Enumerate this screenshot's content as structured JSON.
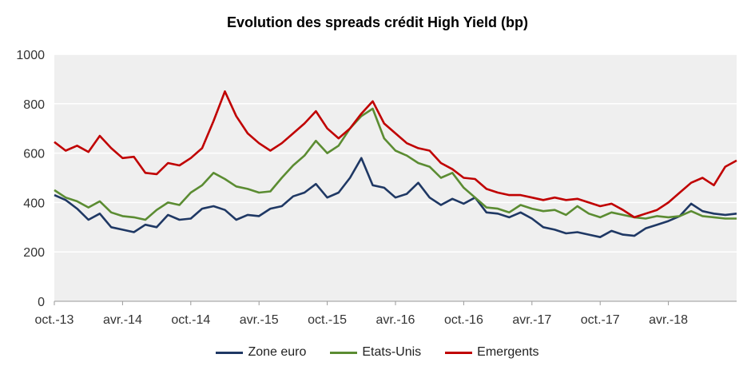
{
  "chart_data": {
    "type": "line",
    "title": "Evolution des spreads crédit High Yield (bp)",
    "xlabel": "",
    "ylabel": "",
    "ylim": [
      0,
      1000
    ],
    "yticks": [
      0,
      200,
      400,
      600,
      800,
      1000
    ],
    "xlim": [
      "2013-10",
      "2018-10"
    ],
    "xticks": [
      {
        "label": "oct.-13",
        "x": "2013-10"
      },
      {
        "label": "avr.-14",
        "x": "2014-04"
      },
      {
        "label": "oct.-14",
        "x": "2014-10"
      },
      {
        "label": "avr.-15",
        "x": "2015-04"
      },
      {
        "label": "oct.-15",
        "x": "2015-10"
      },
      {
        "label": "avr.-16",
        "x": "2016-04"
      },
      {
        "label": "oct.-16",
        "x": "2016-10"
      },
      {
        "label": "avr.-17",
        "x": "2017-04"
      },
      {
        "label": "oct.-17",
        "x": "2017-10"
      },
      {
        "label": "avr.-18",
        "x": "2018-04"
      }
    ],
    "grid": "horizontal",
    "legend_position": "bottom",
    "series": [
      {
        "name": "Zone euro",
        "color": "#1f3864",
        "points": [
          [
            "2013-10",
            430
          ],
          [
            "2013-11",
            410
          ],
          [
            "2013-12",
            375
          ],
          [
            "2014-01",
            330
          ],
          [
            "2014-02",
            355
          ],
          [
            "2014-03",
            300
          ],
          [
            "2014-04",
            290
          ],
          [
            "2014-05",
            280
          ],
          [
            "2014-06",
            310
          ],
          [
            "2014-07",
            300
          ],
          [
            "2014-08",
            350
          ],
          [
            "2014-09",
            330
          ],
          [
            "2014-10",
            335
          ],
          [
            "2014-11",
            375
          ],
          [
            "2014-12",
            385
          ],
          [
            "2015-01",
            370
          ],
          [
            "2015-02",
            330
          ],
          [
            "2015-03",
            350
          ],
          [
            "2015-04",
            345
          ],
          [
            "2015-05",
            375
          ],
          [
            "2015-06",
            385
          ],
          [
            "2015-07",
            425
          ],
          [
            "2015-08",
            440
          ],
          [
            "2015-09",
            475
          ],
          [
            "2015-10",
            420
          ],
          [
            "2015-11",
            440
          ],
          [
            "2015-12",
            500
          ],
          [
            "2016-01",
            580
          ],
          [
            "2016-02",
            470
          ],
          [
            "2016-03",
            460
          ],
          [
            "2016-04",
            420
          ],
          [
            "2016-05",
            435
          ],
          [
            "2016-06",
            480
          ],
          [
            "2016-07",
            420
          ],
          [
            "2016-08",
            390
          ],
          [
            "2016-09",
            415
          ],
          [
            "2016-10",
            395
          ],
          [
            "2016-11",
            420
          ],
          [
            "2016-12",
            360
          ],
          [
            "2017-01",
            355
          ],
          [
            "2017-02",
            340
          ],
          [
            "2017-03",
            360
          ],
          [
            "2017-04",
            335
          ],
          [
            "2017-05",
            300
          ],
          [
            "2017-06",
            290
          ],
          [
            "2017-07",
            275
          ],
          [
            "2017-08",
            280
          ],
          [
            "2017-09",
            270
          ],
          [
            "2017-10",
            260
          ],
          [
            "2017-11",
            285
          ],
          [
            "2017-12",
            270
          ],
          [
            "2018-01",
            265
          ],
          [
            "2018-02",
            295
          ],
          [
            "2018-03",
            310
          ],
          [
            "2018-04",
            325
          ],
          [
            "2018-05",
            345
          ],
          [
            "2018-06",
            395
          ],
          [
            "2018-07",
            365
          ],
          [
            "2018-08",
            355
          ],
          [
            "2018-09",
            350
          ],
          [
            "2018-10",
            355
          ]
        ]
      },
      {
        "name": "Etats-Unis",
        "color": "#5b8c32",
        "points": [
          [
            "2013-10",
            450
          ],
          [
            "2013-11",
            420
          ],
          [
            "2013-12",
            405
          ],
          [
            "2014-01",
            380
          ],
          [
            "2014-02",
            405
          ],
          [
            "2014-03",
            360
          ],
          [
            "2014-04",
            345
          ],
          [
            "2014-05",
            340
          ],
          [
            "2014-06",
            330
          ],
          [
            "2014-07",
            370
          ],
          [
            "2014-08",
            400
          ],
          [
            "2014-09",
            390
          ],
          [
            "2014-10",
            440
          ],
          [
            "2014-11",
            470
          ],
          [
            "2014-12",
            520
          ],
          [
            "2015-01",
            495
          ],
          [
            "2015-02",
            465
          ],
          [
            "2015-03",
            455
          ],
          [
            "2015-04",
            440
          ],
          [
            "2015-05",
            445
          ],
          [
            "2015-06",
            500
          ],
          [
            "2015-07",
            550
          ],
          [
            "2015-08",
            590
          ],
          [
            "2015-09",
            650
          ],
          [
            "2015-10",
            600
          ],
          [
            "2015-11",
            630
          ],
          [
            "2015-12",
            700
          ],
          [
            "2016-01",
            750
          ],
          [
            "2016-02",
            780
          ],
          [
            "2016-03",
            660
          ],
          [
            "2016-04",
            610
          ],
          [
            "2016-05",
            590
          ],
          [
            "2016-06",
            560
          ],
          [
            "2016-07",
            545
          ],
          [
            "2016-08",
            500
          ],
          [
            "2016-09",
            520
          ],
          [
            "2016-10",
            460
          ],
          [
            "2016-11",
            420
          ],
          [
            "2016-12",
            380
          ],
          [
            "2017-01",
            375
          ],
          [
            "2017-02",
            360
          ],
          [
            "2017-03",
            390
          ],
          [
            "2017-04",
            375
          ],
          [
            "2017-05",
            365
          ],
          [
            "2017-06",
            370
          ],
          [
            "2017-07",
            350
          ],
          [
            "2017-08",
            385
          ],
          [
            "2017-09",
            355
          ],
          [
            "2017-10",
            340
          ],
          [
            "2017-11",
            360
          ],
          [
            "2017-12",
            350
          ],
          [
            "2018-01",
            340
          ],
          [
            "2018-02",
            335
          ],
          [
            "2018-03",
            345
          ],
          [
            "2018-04",
            340
          ],
          [
            "2018-05",
            345
          ],
          [
            "2018-06",
            365
          ],
          [
            "2018-07",
            345
          ],
          [
            "2018-08",
            340
          ],
          [
            "2018-09",
            335
          ],
          [
            "2018-10",
            335
          ]
        ]
      },
      {
        "name": "Emergents",
        "color": "#c00000",
        "points": [
          [
            "2013-10",
            645
          ],
          [
            "2013-11",
            610
          ],
          [
            "2013-12",
            630
          ],
          [
            "2014-01",
            605
          ],
          [
            "2014-02",
            670
          ],
          [
            "2014-03",
            620
          ],
          [
            "2014-04",
            580
          ],
          [
            "2014-05",
            585
          ],
          [
            "2014-06",
            520
          ],
          [
            "2014-07",
            515
          ],
          [
            "2014-08",
            560
          ],
          [
            "2014-09",
            550
          ],
          [
            "2014-10",
            580
          ],
          [
            "2014-11",
            620
          ],
          [
            "2014-12",
            730
          ],
          [
            "2015-01",
            850
          ],
          [
            "2015-02",
            750
          ],
          [
            "2015-03",
            680
          ],
          [
            "2015-04",
            640
          ],
          [
            "2015-05",
            610
          ],
          [
            "2015-06",
            640
          ],
          [
            "2015-07",
            680
          ],
          [
            "2015-08",
            720
          ],
          [
            "2015-09",
            770
          ],
          [
            "2015-10",
            700
          ],
          [
            "2015-11",
            660
          ],
          [
            "2015-12",
            700
          ],
          [
            "2016-01",
            760
          ],
          [
            "2016-02",
            810
          ],
          [
            "2016-03",
            720
          ],
          [
            "2016-04",
            680
          ],
          [
            "2016-05",
            640
          ],
          [
            "2016-06",
            620
          ],
          [
            "2016-07",
            610
          ],
          [
            "2016-08",
            560
          ],
          [
            "2016-09",
            535
          ],
          [
            "2016-10",
            500
          ],
          [
            "2016-11",
            495
          ],
          [
            "2016-12",
            455
          ],
          [
            "2017-01",
            440
          ],
          [
            "2017-02",
            430
          ],
          [
            "2017-03",
            430
          ],
          [
            "2017-04",
            420
          ],
          [
            "2017-05",
            410
          ],
          [
            "2017-06",
            420
          ],
          [
            "2017-07",
            410
          ],
          [
            "2017-08",
            415
          ],
          [
            "2017-09",
            400
          ],
          [
            "2017-10",
            385
          ],
          [
            "2017-11",
            395
          ],
          [
            "2017-12",
            370
          ],
          [
            "2018-01",
            340
          ],
          [
            "2018-02",
            355
          ],
          [
            "2018-03",
            370
          ],
          [
            "2018-04",
            400
          ],
          [
            "2018-05",
            440
          ],
          [
            "2018-06",
            480
          ],
          [
            "2018-07",
            500
          ],
          [
            "2018-08",
            470
          ],
          [
            "2018-09",
            545
          ],
          [
            "2018-10",
            570
          ]
        ]
      }
    ]
  }
}
